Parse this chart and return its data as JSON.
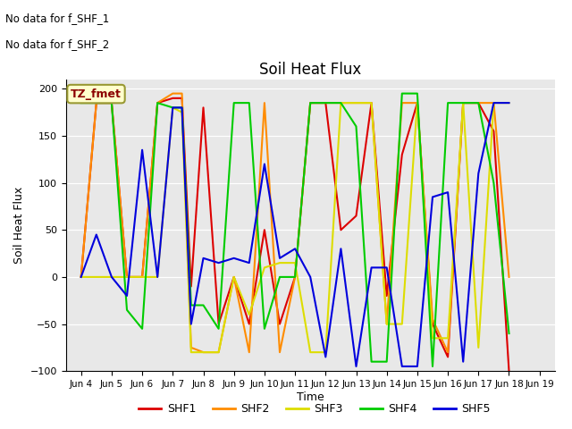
{
  "title": "Soil Heat Flux",
  "ylabel": "Soil Heat Flux",
  "xlabel": "Time",
  "ylim": [
    -100,
    210
  ],
  "yticks": [
    -100,
    -50,
    0,
    50,
    100,
    150,
    200
  ],
  "annotations": [
    "No data for f_SHF_1",
    "No data for f_SHF_2"
  ],
  "legend_label": "TZ_fmet",
  "xtick_labels": [
    "Jun 4",
    "Jun 5",
    "Jun 6",
    "Jun 7",
    "Jun 8",
    "Jun 9",
    "Jun 10",
    "Jun 11",
    "Jun 12",
    "Jun 13",
    "Jun 14",
    "Jun 15",
    "Jun 16",
    "Jun 17",
    "Jun 18",
    "Jun 19"
  ],
  "series": {
    "SHF1": {
      "color": "#dd0000",
      "x": [
        4,
        4.5,
        5,
        5.5,
        6,
        6.5,
        7,
        7.3,
        7.6,
        8,
        8.5,
        9,
        9.5,
        10,
        10.5,
        11,
        11.5,
        12,
        12.5,
        13,
        13.5,
        14,
        14.5,
        15,
        15.5,
        16,
        16.5,
        17,
        17.5,
        18
      ],
      "y": [
        0,
        185,
        185,
        0,
        0,
        185,
        190,
        190,
        -10,
        180,
        -50,
        0,
        -50,
        50,
        -50,
        0,
        185,
        185,
        50,
        65,
        185,
        -20,
        130,
        185,
        -50,
        -85,
        185,
        185,
        155,
        -100
      ]
    },
    "SHF2": {
      "color": "#ff8c00",
      "x": [
        4,
        4.5,
        5,
        5.5,
        6,
        6.5,
        7,
        7.3,
        7.6,
        8,
        8.5,
        9,
        9.5,
        10,
        10.5,
        11,
        11.5,
        12,
        12.5,
        13,
        13.5,
        14,
        14.5,
        15,
        15.5,
        16,
        16.5,
        17,
        17.5,
        18
      ],
      "y": [
        0,
        185,
        185,
        0,
        0,
        185,
        195,
        195,
        -75,
        -80,
        -80,
        0,
        -80,
        185,
        -80,
        0,
        185,
        185,
        185,
        185,
        185,
        -50,
        185,
        185,
        -45,
        -80,
        185,
        185,
        185,
        0
      ]
    },
    "SHF3": {
      "color": "#dddd00",
      "x": [
        4,
        4.5,
        5,
        5.5,
        6,
        6.5,
        7,
        7.3,
        7.6,
        8,
        8.5,
        9,
        9.5,
        10,
        10.5,
        11,
        11.5,
        12,
        12.5,
        13,
        13.5,
        14,
        14.5,
        15,
        15.5,
        16,
        16.5,
        17,
        17.5,
        18
      ],
      "y": [
        0,
        0,
        0,
        0,
        0,
        0,
        180,
        175,
        -80,
        -80,
        -80,
        0,
        -40,
        10,
        15,
        15,
        -80,
        -80,
        185,
        185,
        185,
        -50,
        -50,
        185,
        -65,
        -65,
        185,
        -75,
        185,
        185
      ]
    },
    "SHF4": {
      "color": "#00cc00",
      "x": [
        4,
        4.5,
        5,
        5.5,
        6,
        6.5,
        7,
        7.3,
        7.6,
        8,
        8.5,
        9,
        9.5,
        10,
        10.5,
        11,
        11.5,
        12,
        12.5,
        13,
        13.5,
        14,
        14.5,
        15,
        15.5,
        16,
        16.5,
        17,
        17.5,
        18
      ],
      "y": [
        185,
        185,
        185,
        -35,
        -55,
        185,
        180,
        180,
        -30,
        -30,
        -55,
        185,
        185,
        -55,
        0,
        0,
        185,
        185,
        185,
        160,
        -90,
        -90,
        195,
        195,
        -95,
        185,
        185,
        185,
        100,
        -60
      ]
    },
    "SHF5": {
      "color": "#0000dd",
      "x": [
        4,
        4.5,
        5,
        5.5,
        6,
        6.5,
        7,
        7.3,
        7.6,
        8,
        8.5,
        9,
        9.5,
        10,
        10.5,
        11,
        11.5,
        12,
        12.5,
        13,
        13.5,
        14,
        14.5,
        15,
        15.5,
        16,
        16.5,
        17,
        17.5,
        18
      ],
      "y": [
        0,
        45,
        0,
        -20,
        135,
        0,
        180,
        180,
        -50,
        20,
        15,
        20,
        15,
        120,
        20,
        30,
        0,
        -85,
        30,
        -95,
        10,
        10,
        -95,
        -95,
        85,
        90,
        -90,
        110,
        185,
        185
      ]
    }
  },
  "background_color": "#e8e8e8",
  "legend_box_facecolor": "#ffffcc",
  "legend_box_edgecolor": "#999933"
}
